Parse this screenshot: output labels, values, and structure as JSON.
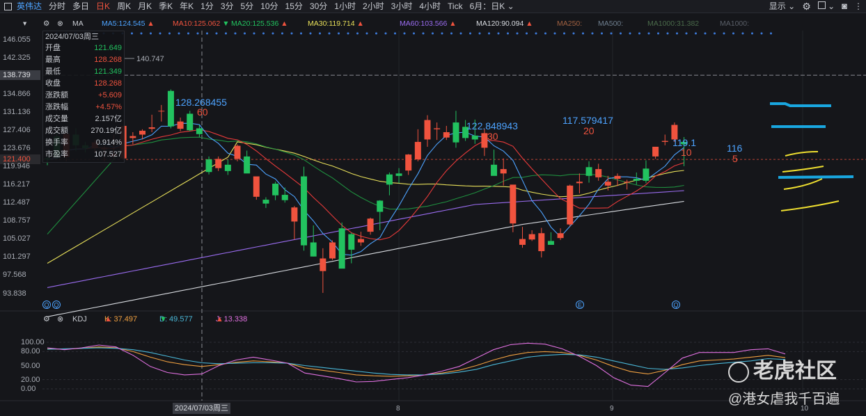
{
  "toolbar": {
    "stock_name": "英伟达",
    "periods": [
      "分时",
      "多日",
      "日K",
      "周K",
      "月K",
      "季K",
      "年K",
      "1分",
      "3分",
      "5分",
      "10分",
      "15分",
      "30分",
      "1小时",
      "2小时",
      "3小时",
      "4小时",
      "Tick"
    ],
    "active_period": "日K",
    "period_dropdown": "6月：日K",
    "display_label": "显示"
  },
  "ma_bar": {
    "indicator": "MA",
    "items": [
      {
        "label": "MA5:",
        "value": "124.545",
        "color": "#4da3ff",
        "arrow": "▲",
        "arrow_color": "#f0533e"
      },
      {
        "label": "MA10:",
        "value": "125.062",
        "color": "#f0533e",
        "arrow": "▼",
        "arrow_color": "#22c25f"
      },
      {
        "label": "MA20:",
        "value": "125.536",
        "color": "#22c25f",
        "arrow": "▲",
        "arrow_color": "#f0533e"
      },
      {
        "label": "MA30:",
        "value": "119.714",
        "color": "#e8e05a",
        "arrow": "▲",
        "arrow_color": "#f0533e"
      },
      {
        "label": "MA60:",
        "value": "103.566",
        "color": "#9a6cf0",
        "arrow": "▲",
        "arrow_color": "#f0533e"
      },
      {
        "label": "MA120:",
        "value": "90.094",
        "color": "#d8dbe0",
        "arrow": "▲",
        "arrow_color": "#f0533e"
      },
      {
        "label": "MA250:",
        "value": "",
        "color": "#a06040",
        "arrow": "",
        "arrow_color": ""
      },
      {
        "label": "MA500:",
        "value": "",
        "color": "#6f7f8f",
        "arrow": "",
        "arrow_color": ""
      },
      {
        "label": "MA1000:",
        "value": "31.382",
        "color": "#4a6a4a",
        "arrow": "",
        "arrow_color": ""
      },
      {
        "label": "MA1000:",
        "value": "",
        "color": "#5a5f68",
        "arrow": "",
        "arrow_color": ""
      }
    ]
  },
  "info": {
    "date": "2024/07/03周三",
    "rows": [
      {
        "label": "开盘",
        "value": "121.649",
        "color": "#22c25f"
      },
      {
        "label": "最高",
        "value": "128.268",
        "color": "#f0533e"
      },
      {
        "label": "最低",
        "value": "121.349",
        "color": "#22c25f"
      },
      {
        "label": "收盘",
        "value": "128.268",
        "color": "#f0533e"
      },
      {
        "label": "涨跌额",
        "value": "+5.609",
        "color": "#f0533e"
      },
      {
        "label": "涨跌幅",
        "value": "+4.57%",
        "color": "#f0533e"
      },
      {
        "label": "成交量",
        "value": "2.157亿",
        "color": "#c9ccd2"
      },
      {
        "label": "成交额",
        "value": "270.19亿",
        "color": "#c9ccd2"
      },
      {
        "label": "换手率",
        "value": "0.914%",
        "color": "#c9ccd2"
      },
      {
        "label": "市盈率",
        "value": "107.527",
        "color": "#c9ccd2"
      }
    ]
  },
  "price_axis": {
    "labels": [
      "146.055",
      "142.325",
      "138.739",
      "134.866",
      "131.136",
      "127.406",
      "123.676",
      "121.400",
      "119.946",
      "116.217",
      "112.487",
      "108.757",
      "105.027",
      "101.297",
      "97.568",
      "93.838"
    ],
    "highlight_gray": "138.739",
    "highlight_current": "121.400",
    "float_label": "140.747"
  },
  "annotations": [
    {
      "price": "128.268455",
      "count": "60"
    },
    {
      "price": "122.848943",
      "count": "30"
    },
    {
      "price": "117.579417",
      "count": "20"
    },
    {
      "price": "119.1",
      "count": "10"
    },
    {
      "price": "116",
      "count": "5"
    }
  ],
  "kdj": {
    "indicator": "KDJ",
    "k_label": "K: 37.497",
    "k_arrow": "▲",
    "d_label": "D: 49.577",
    "d_arrow": "▼",
    "j_label": "J: 13.338",
    "j_arrow": "▲",
    "axis": [
      "100.00",
      "80.00",
      "50.00",
      "20.00",
      "0.00"
    ]
  },
  "x_axis": {
    "cursor_date": "2024/07/03周三",
    "labels": [
      "8",
      "9",
      "10"
    ]
  },
  "watermark": {
    "brand": "老虎社区",
    "user": "@港女虐我千百遍"
  },
  "chart_data": [
    {
      "type": "candlestick",
      "title": "英伟达 日K",
      "ylim": [
        93.838,
        146.055
      ],
      "candles_ohlc_approx": [
        [
          121.6,
          122.0,
          120.2,
          121.4
        ],
        [
          126.1,
          127.2,
          121.5,
          121.8
        ],
        [
          121.9,
          127.0,
          121.0,
          126.6
        ],
        [
          126.5,
          127.8,
          123.1,
          124.3
        ],
        [
          124.3,
          125.0,
          122.8,
          123.7
        ],
        [
          123.7,
          125.4,
          122.9,
          124.9
        ],
        [
          123.5,
          124.2,
          121.0,
          123.8
        ],
        [
          122.0,
          126.5,
          121.5,
          122.5
        ],
        [
          121.6,
          128.3,
          121.3,
          128.3
        ],
        [
          125.8,
          127.0,
          124.5,
          126.2
        ],
        [
          126.5,
          127.6,
          125.5,
          127.3
        ],
        [
          127.7,
          130.6,
          127.0,
          128.0
        ],
        [
          131.4,
          132.6,
          129.2,
          131.4
        ],
        [
          135.5,
          135.8,
          127.8,
          128.2
        ],
        [
          127.7,
          130.0,
          127.2,
          129.2
        ],
        [
          130.8,
          131.4,
          127.2,
          127.4
        ],
        [
          127.8,
          128.5,
          126.0,
          126.6
        ],
        [
          121.4,
          122.0,
          118.3,
          118.8
        ],
        [
          119.6,
          122.0,
          119.0,
          121.5
        ],
        [
          120.3,
          121.4,
          118.2,
          119.0
        ],
        [
          121.5,
          124.5,
          121.0,
          124.2
        ],
        [
          122.0,
          123.2,
          119.0,
          118.5
        ],
        [
          113.7,
          117.6,
          113.1,
          117.9
        ],
        [
          113.1,
          113.6,
          111.4,
          112.3
        ],
        [
          116.4,
          116.8,
          113.0,
          114.0
        ],
        [
          114.1,
          115.6,
          112.5,
          113.0
        ],
        [
          108.6,
          111.8,
          104.9,
          111.5
        ],
        [
          117.9,
          119.9,
          102.6,
          103.7
        ],
        [
          104.3,
          107.8,
          101.4,
          101.4
        ],
        [
          98.4,
          103.1,
          93.9,
          101.0
        ],
        [
          101.0,
          104.7,
          100.7,
          104.3
        ],
        [
          107.2,
          108.4,
          99.6,
          98.9
        ],
        [
          106.0,
          106.3,
          100.0,
          102.8
        ],
        [
          104.3,
          106.5,
          103.6,
          105.0
        ],
        [
          106.5,
          109.4,
          105.9,
          109.2
        ],
        [
          112.9,
          113.0,
          106.8,
          110.6
        ],
        [
          118.3,
          118.7,
          114.0,
          116.2
        ],
        [
          118.5,
          119.6,
          116.5,
          118.0
        ],
        [
          119.1,
          122.5,
          118.2,
          122.4
        ],
        [
          121.4,
          127.6,
          121.0,
          125.0
        ],
        [
          125.5,
          130.5,
          124.0,
          129.5
        ],
        [
          127.6,
          129.0,
          125.4,
          127.8
        ],
        [
          125.9,
          128.3,
          125.4,
          127.0
        ],
        [
          129.0,
          131.4,
          123.8,
          124.9
        ],
        [
          128.1,
          129.5,
          125.2,
          125.8
        ],
        [
          126.3,
          129.6,
          124.6,
          125.5
        ],
        [
          123.8,
          127.7,
          122.1,
          126.8
        ],
        [
          120.3,
          123.4,
          118.1,
          118.0
        ],
        [
          118.5,
          121.6,
          116.0,
          119.4
        ],
        [
          108.2,
          116.0,
          106.4,
          116.2
        ],
        [
          103.8,
          107.5,
          103.2,
          105.0
        ],
        [
          104.9,
          106.8,
          104.6,
          106.0
        ],
        [
          102.5,
          107.3,
          101.2,
          106.2
        ],
        [
          104.6,
          106.4,
          103.8,
          103.8
        ],
        [
          105.2,
          107.2,
          104.8,
          106.2
        ],
        [
          108.0,
          116.2,
          107.6,
          116.0
        ],
        [
          116.5,
          118.5,
          114.4,
          116.8
        ],
        [
          119.8,
          121.0,
          116.6,
          118.0
        ],
        [
          117.7,
          120.5,
          117.0,
          119.4
        ],
        [
          116.0,
          118.0,
          115.0,
          116.8
        ],
        [
          117.4,
          118.5,
          115.9,
          118.0
        ],
        [
          116.6,
          117.2,
          115.2,
          116.8
        ],
        [
          117.4,
          118.7,
          116.2,
          117.0
        ],
        [
          119.5,
          121.2,
          116.5,
          117.0
        ],
        [
          122.0,
          123.4,
          121.5,
          124.0
        ],
        [
          125.0,
          126.5,
          124.3,
          125.2
        ],
        [
          125.5,
          129.0,
          125.0,
          128.5
        ],
        [
          125.0,
          126.0,
          120.0,
          124.5
        ]
      ]
    },
    {
      "type": "line",
      "title": "KDJ",
      "ylim": [
        0,
        100
      ],
      "series": [
        {
          "name": "K",
          "values": [
            86,
            85,
            87,
            90,
            88,
            80,
            68,
            58,
            52,
            48,
            52,
            57,
            60,
            58,
            55,
            45,
            40,
            35,
            30,
            28,
            27,
            28,
            30,
            34,
            40,
            50,
            62,
            72,
            78,
            80,
            78,
            72,
            62,
            48,
            37,
            32,
            40,
            52,
            60,
            62,
            64,
            68,
            72,
            67
          ]
        },
        {
          "name": "D",
          "values": [
            85,
            86,
            87,
            88,
            87,
            84,
            78,
            70,
            62,
            56,
            54,
            55,
            56,
            56,
            55,
            50,
            46,
            42,
            38,
            34,
            31,
            30,
            30,
            32,
            36,
            42,
            52,
            60,
            68,
            72,
            74,
            73,
            68,
            60,
            52,
            44,
            42,
            45,
            50,
            54,
            57,
            60,
            65,
            63
          ]
        },
        {
          "name": "J",
          "values": [
            88,
            84,
            88,
            94,
            90,
            72,
            48,
            35,
            30,
            32,
            50,
            62,
            68,
            62,
            55,
            34,
            28,
            22,
            15,
            16,
            20,
            24,
            30,
            38,
            48,
            66,
            84,
            95,
            98,
            96,
            86,
            70,
            50,
            24,
            8,
            5,
            35,
            66,
            78,
            78,
            78,
            84,
            86,
            75
          ]
        }
      ]
    }
  ]
}
